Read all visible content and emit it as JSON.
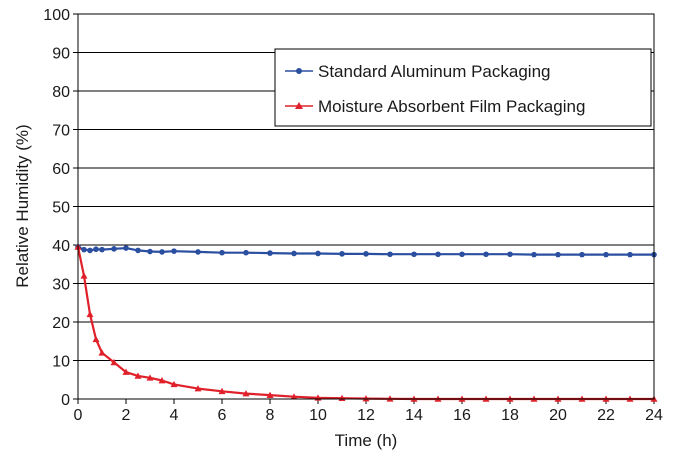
{
  "chart_data": {
    "type": "line",
    "title": "",
    "xlabel": "Time (h)",
    "ylabel": "Relative Humidity (%)",
    "xlim": [
      0,
      24
    ],
    "ylim": [
      0,
      100
    ],
    "x_ticks": [
      0,
      2,
      4,
      6,
      8,
      10,
      12,
      14,
      16,
      18,
      20,
      22,
      24
    ],
    "y_ticks": [
      0,
      10,
      20,
      30,
      40,
      50,
      60,
      70,
      80,
      90,
      100
    ],
    "grid": "horizontal",
    "legend_position": "top-right",
    "x": [
      0,
      0.25,
      0.5,
      0.75,
      1,
      1.5,
      2,
      2.5,
      3,
      3.5,
      4,
      5,
      6,
      7,
      8,
      9,
      10,
      11,
      12,
      13,
      14,
      15,
      16,
      17,
      18,
      19,
      20,
      21,
      22,
      23,
      24
    ],
    "series": [
      {
        "name": "Standard Aluminum Packaging",
        "color": "#2b4fa0",
        "marker": "circle",
        "values": [
          39.5,
          38.8,
          38.6,
          38.9,
          38.8,
          39.0,
          39.2,
          38.6,
          38.3,
          38.2,
          38.4,
          38.2,
          38.0,
          38.0,
          37.9,
          37.8,
          37.8,
          37.7,
          37.7,
          37.6,
          37.6,
          37.6,
          37.6,
          37.6,
          37.6,
          37.5,
          37.5,
          37.5,
          37.5,
          37.5,
          37.5
        ]
      },
      {
        "name": "Moisture Absorbent Film Packaging",
        "color": "#e0202a",
        "marker": "triangle",
        "values": [
          39.5,
          32.0,
          22.0,
          15.5,
          12.0,
          9.5,
          7.0,
          6.0,
          5.5,
          4.8,
          3.8,
          2.7,
          2.0,
          1.4,
          1.0,
          0.6,
          0.3,
          0.2,
          0.1,
          0.05,
          0.0,
          0.0,
          0.0,
          0.0,
          0.0,
          0.0,
          0.0,
          0.0,
          0.0,
          0.0,
          0.0
        ]
      }
    ]
  }
}
